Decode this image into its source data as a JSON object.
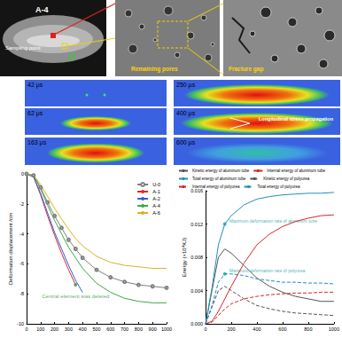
{
  "panels": {
    "photo": {
      "label": "A-4",
      "annotation": "Sampling point"
    },
    "sem": [
      {
        "label": "Remaining pores"
      },
      {
        "label": "Fracture gap"
      }
    ],
    "simulation": {
      "frames": [
        "42 μs",
        "62 μs",
        "163 μs",
        "250 μs",
        "400 μs",
        "600 μs"
      ],
      "annotation": "Longitudinal stress propagation"
    }
  },
  "chart_data": [
    {
      "type": "line",
      "ylabel": "Deformation displacement /cm",
      "x": [
        0,
        50,
        100,
        150,
        200,
        250,
        300,
        350,
        400,
        500,
        600,
        700,
        800,
        900,
        1000
      ],
      "series": [
        {
          "name": "U-0",
          "color": "#7f7f7f",
          "marker": "circle",
          "line_style": "solid",
          "values": [
            0,
            -0.1,
            -0.9,
            -1.9,
            -2.8,
            -3.6,
            -4.4,
            -5.0,
            -5.6,
            -6.4,
            -6.9,
            -7.2,
            -7.4,
            -7.5,
            -7.6
          ]
        },
        {
          "name": "A-1",
          "color": "#e3242b",
          "marker": "none",
          "line_style": "solid",
          "values": [
            0,
            -0.2,
            -1.4,
            -2.8,
            -4.1,
            -5.3,
            -6.4,
            -7.4,
            null,
            null,
            null,
            null,
            null,
            null,
            null
          ]
        },
        {
          "name": "A-2",
          "color": "#2f5fd0",
          "marker": "none",
          "line_style": "solid",
          "values": [
            0,
            -0.2,
            -1.3,
            -2.6,
            -3.9,
            -5.0,
            -6.1,
            -7.1,
            -7.9,
            null,
            null,
            null,
            null,
            null,
            null
          ]
        },
        {
          "name": "A-4",
          "color": "#3aa845",
          "marker": "none",
          "line_style": "solid",
          "values": [
            0,
            -0.1,
            -1.0,
            -2.1,
            -3.1,
            -4.0,
            -4.9,
            -5.6,
            -6.3,
            -7.3,
            -7.9,
            -8.3,
            -8.5,
            -8.6,
            -8.6
          ]
        },
        {
          "name": "A-6",
          "color": "#e0b020",
          "marker": "none",
          "line_style": "solid",
          "values": [
            0,
            -0.1,
            -0.7,
            -1.5,
            -2.3,
            -3.0,
            -3.7,
            -4.3,
            -4.8,
            -5.5,
            -5.9,
            -6.1,
            -6.2,
            -6.3,
            -6.3
          ]
        }
      ],
      "annotations": [
        {
          "text": "Central element was deleted",
          "x": 350,
          "y": -7.4,
          "color": "#2e9e3a"
        }
      ],
      "xlim": [
        0,
        1000
      ],
      "xticks": [
        0,
        100,
        200,
        300,
        400,
        500,
        600,
        700,
        800,
        900,
        1000
      ],
      "ylim": [
        -10,
        0
      ],
      "yticks": [
        -10,
        -8,
        -6,
        -4,
        -2,
        0
      ],
      "grid": false,
      "legend": "upper right"
    },
    {
      "type": "line",
      "ylabel": "Energy (×10⁴KJ)",
      "x": [
        0,
        50,
        100,
        150,
        200,
        300,
        400,
        500,
        600,
        700,
        800,
        900,
        1000
      ],
      "series": [
        {
          "name": "Kinetic energy of aluminum tube",
          "color": "#555555",
          "line_style": "solid",
          "values": [
            0,
            0.004,
            0.008,
            0.009,
            0.0085,
            0.007,
            0.0055,
            0.0045,
            0.0038,
            0.0033,
            0.003,
            0.0027,
            0.0027
          ]
        },
        {
          "name": "Internal energy of aluminum tube",
          "color": "#d62728",
          "line_style": "solid",
          "values": [
            0,
            0.0003,
            0.0015,
            0.003,
            0.0045,
            0.0073,
            0.0095,
            0.0108,
            0.0117,
            0.0123,
            0.0127,
            0.013,
            0.0131
          ]
        },
        {
          "name": "Total energy of aluminum tube",
          "color": "#1f8fbf",
          "line_style": "solid",
          "values": [
            0,
            0.0043,
            0.0095,
            0.012,
            0.013,
            0.0143,
            0.015,
            0.0153,
            0.0155,
            0.0156,
            0.0157,
            0.0157,
            0.0158
          ]
        },
        {
          "name": "Kinetic energy of polyurea",
          "color": "#555555",
          "line_style": "dashed",
          "values": [
            0,
            0.002,
            0.004,
            0.0045,
            0.004,
            0.003,
            0.0022,
            0.0018,
            0.0015,
            0.0013,
            0.0012,
            0.0011,
            0.001
          ]
        },
        {
          "name": "Internal energy of polyurea",
          "color": "#d62728",
          "line_style": "dashed",
          "values": [
            0,
            0.0002,
            0.001,
            0.0018,
            0.0024,
            0.003,
            0.0033,
            0.0035,
            0.0036,
            0.0037,
            0.0037,
            0.0038,
            0.0038
          ]
        },
        {
          "name": "Total energy of polyurea",
          "color": "#1f8fbf",
          "line_style": "dashed",
          "values": [
            0,
            0.0022,
            0.005,
            0.006,
            0.006,
            0.0058,
            0.0054,
            0.0052,
            0.005,
            0.005,
            0.0049,
            0.0049,
            0.0048
          ]
        }
      ],
      "annotations": [
        {
          "text": "Maximum deformation rate of aluminum tube",
          "x": 150,
          "y": 0.012,
          "color": "#17a2a2"
        },
        {
          "text": "Maximum deformation rate of polyurea",
          "x": 150,
          "y": 0.006,
          "color": "#17a2a2"
        }
      ],
      "xlim": [
        0,
        1000
      ],
      "xticks": [
        0,
        200,
        400,
        600,
        800,
        1000
      ],
      "ylim": [
        0,
        0.016
      ],
      "yticks": [
        {
          "value": 0,
          "label": "0.000"
        },
        0.004,
        0.008,
        0.012,
        0.016
      ],
      "grid": false,
      "legend": "upper center"
    }
  ]
}
